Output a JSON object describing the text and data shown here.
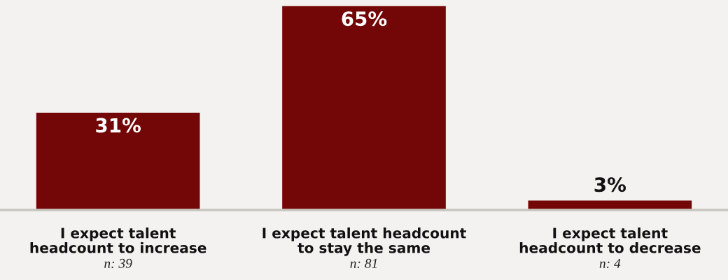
{
  "chart_data": {
    "type": "bar",
    "categories": [
      "I expect talent\nheadcount to increase",
      "I expect talent headcount\nto stay the same",
      "I expect talent\nheadcount to decrease"
    ],
    "values": [
      31,
      65,
      3
    ],
    "color": "#730606",
    "value_labels": [
      "31%",
      "65%",
      "3%"
    ],
    "annotations": [
      "n: 39",
      "n: 81",
      "n: 4"
    ],
    "grid": false,
    "legend": false
  }
}
